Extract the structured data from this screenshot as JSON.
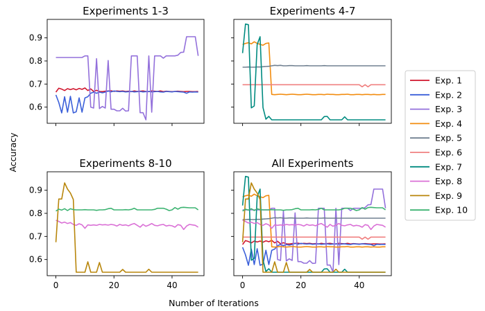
{
  "figure": {
    "ylabel": "Accuracy",
    "xlabel": "Number of Iterations"
  },
  "legend": {
    "placement": "right",
    "entries": [
      {
        "label": "Exp. 1",
        "color": "#d0142c"
      },
      {
        "label": "Exp. 2",
        "color": "#3a5fd9"
      },
      {
        "label": "Exp. 3",
        "color": "#9370db"
      },
      {
        "label": "Exp. 4",
        "color": "#f28c0f"
      },
      {
        "label": "Exp. 5",
        "color": "#708090"
      },
      {
        "label": "Exp. 6",
        "color": "#f08080"
      },
      {
        "label": "Exp. 7",
        "color": "#008b80"
      },
      {
        "label": "Exp. 8",
        "color": "#da70d6"
      },
      {
        "label": "Exp. 9",
        "color": "#b8860b"
      },
      {
        "label": "Exp. 10",
        "color": "#3cb371"
      }
    ]
  },
  "chart_data": [
    {
      "type": "line",
      "title": "Experiments 1-3",
      "xlim": [
        -3,
        51
      ],
      "ylim": [
        0.53,
        0.98
      ],
      "xticks": [
        0,
        20,
        40
      ],
      "yticks": [
        0.6,
        0.7,
        0.8,
        0.9
      ],
      "xtick_labels_visible": false,
      "ytick_labels_visible": true,
      "series": [
        {
          "name": "Exp. 1",
          "color": "#d0142c",
          "x_start": 0,
          "values": [
            0.665,
            0.682,
            0.678,
            0.672,
            0.68,
            0.676,
            0.68,
            0.675,
            0.681,
            0.677,
            0.683,
            0.672,
            0.679,
            0.668,
            0.673,
            0.668,
            0.667,
            0.669,
            0.67,
            0.671,
            0.668,
            0.67,
            0.669,
            0.67,
            0.668,
            0.669,
            0.667,
            0.67,
            0.668,
            0.669,
            0.67,
            0.668,
            0.667,
            0.67,
            0.669,
            0.668,
            0.67,
            0.667,
            0.669,
            0.668,
            0.667,
            0.668,
            0.669,
            0.668,
            0.667,
            0.668,
            0.668,
            0.667,
            0.667,
            0.668
          ]
        },
        {
          "name": "Exp. 2",
          "color": "#3a5fd9",
          "x_start": 0,
          "values": [
            0.653,
            0.62,
            0.575,
            0.645,
            0.578,
            0.647,
            0.575,
            0.58,
            0.64,
            0.578,
            0.64,
            0.645,
            0.66,
            0.665,
            0.66,
            0.665,
            0.662,
            0.665,
            0.67,
            0.666,
            0.67,
            0.668,
            0.667,
            0.668,
            0.666,
            0.667,
            0.668,
            0.666,
            0.667,
            0.668,
            0.666,
            0.667,
            0.668,
            0.666,
            0.667,
            0.668,
            0.666,
            0.665,
            0.668,
            0.667,
            0.666,
            0.668,
            0.667,
            0.666,
            0.665,
            0.66,
            0.666,
            0.665,
            0.666,
            0.665
          ]
        },
        {
          "name": "Exp. 3",
          "color": "#9370db",
          "x_start": 0,
          "values": [
            0.815,
            0.815,
            0.815,
            0.815,
            0.815,
            0.815,
            0.815,
            0.815,
            0.815,
            0.815,
            0.822,
            0.822,
            0.6,
            0.596,
            0.81,
            0.594,
            0.603,
            0.596,
            0.802,
            0.591,
            0.591,
            0.584,
            0.584,
            0.595,
            0.583,
            0.584,
            0.822,
            0.822,
            0.822,
            0.576,
            0.576,
            0.545,
            0.822,
            0.578,
            0.822,
            0.822,
            0.822,
            0.812,
            0.822,
            0.822,
            0.822,
            0.822,
            0.825,
            0.837,
            0.838,
            0.905,
            0.905,
            0.905,
            0.905,
            0.822
          ]
        }
      ]
    },
    {
      "type": "line",
      "title": "Experiments 4-7",
      "xlim": [
        -3,
        51
      ],
      "ylim": [
        0.53,
        0.98
      ],
      "xticks": [
        0,
        20,
        40
      ],
      "yticks": [
        0.6,
        0.7,
        0.8,
        0.9
      ],
      "xtick_labels_visible": false,
      "ytick_labels_visible": false,
      "series": [
        {
          "name": "Exp. 4",
          "color": "#f28c0f",
          "x_start": 0,
          "values": [
            0.871,
            0.876,
            0.879,
            0.874,
            0.883,
            0.876,
            0.872,
            0.868,
            0.876,
            0.878,
            0.655,
            0.654,
            0.655,
            0.656,
            0.655,
            0.654,
            0.655,
            0.656,
            0.655,
            0.654,
            0.654,
            0.655,
            0.656,
            0.655,
            0.654,
            0.654,
            0.655,
            0.655,
            0.654,
            0.656,
            0.655,
            0.655,
            0.654,
            0.654,
            0.655,
            0.655,
            0.656,
            0.654,
            0.654,
            0.655,
            0.655,
            0.654,
            0.655,
            0.655,
            0.654,
            0.655,
            0.654,
            0.654,
            0.655,
            0.655
          ]
        },
        {
          "name": "Exp. 5",
          "color": "#708090",
          "x_start": 0,
          "values": [
            0.773,
            0.773,
            0.774,
            0.773,
            0.773,
            0.774,
            0.774,
            0.775,
            0.776,
            0.777,
            0.779,
            0.781,
            0.78,
            0.781,
            0.779,
            0.779,
            0.78,
            0.78,
            0.779,
            0.779,
            0.779,
            0.779,
            0.78,
            0.779,
            0.779,
            0.779,
            0.779,
            0.779,
            0.78,
            0.779,
            0.779,
            0.779,
            0.779,
            0.779,
            0.779,
            0.779,
            0.779,
            0.779,
            0.779,
            0.779,
            0.779,
            0.779,
            0.779,
            0.779,
            0.779,
            0.779,
            0.779,
            0.779,
            0.779,
            0.779
          ]
        },
        {
          "name": "Exp. 6",
          "color": "#f08080",
          "x_start": 0,
          "values": [
            0.697,
            0.697,
            0.697,
            0.697,
            0.697,
            0.697,
            0.697,
            0.697,
            0.697,
            0.697,
            0.697,
            0.697,
            0.697,
            0.697,
            0.697,
            0.697,
            0.697,
            0.697,
            0.697,
            0.697,
            0.697,
            0.697,
            0.697,
            0.697,
            0.697,
            0.697,
            0.697,
            0.697,
            0.697,
            0.697,
            0.697,
            0.697,
            0.697,
            0.697,
            0.697,
            0.697,
            0.697,
            0.697,
            0.697,
            0.697,
            0.697,
            0.688,
            0.697,
            0.688,
            0.697,
            0.697,
            0.697,
            0.697,
            0.697,
            0.697
          ]
        },
        {
          "name": "Exp. 7",
          "color": "#008b80",
          "x_start": 0,
          "values": [
            0.834,
            0.96,
            0.957,
            0.597,
            0.605,
            0.871,
            0.905,
            0.598,
            0.548,
            0.56,
            0.545,
            0.545,
            0.545,
            0.545,
            0.545,
            0.545,
            0.545,
            0.545,
            0.545,
            0.545,
            0.545,
            0.545,
            0.545,
            0.545,
            0.545,
            0.545,
            0.545,
            0.545,
            0.559,
            0.56,
            0.545,
            0.545,
            0.545,
            0.545,
            0.545,
            0.558,
            0.545,
            0.545,
            0.545,
            0.545,
            0.545,
            0.545,
            0.545,
            0.545,
            0.545,
            0.545,
            0.545,
            0.545,
            0.545,
            0.545
          ]
        }
      ]
    },
    {
      "type": "line",
      "title": "Experiments 8-10",
      "xlim": [
        -3,
        51
      ],
      "ylim": [
        0.53,
        0.98
      ],
      "xticks": [
        0,
        20,
        40
      ],
      "yticks": [
        0.6,
        0.7,
        0.8,
        0.9
      ],
      "xtick_labels_visible": true,
      "ytick_labels_visible": true,
      "series": [
        {
          "name": "Exp. 8",
          "color": "#da70d6",
          "x_start": 0,
          "values": [
            0.77,
            0.765,
            0.758,
            0.762,
            0.756,
            0.76,
            0.752,
            0.748,
            0.755,
            0.75,
            0.735,
            0.75,
            0.748,
            0.75,
            0.748,
            0.752,
            0.75,
            0.751,
            0.749,
            0.752,
            0.75,
            0.745,
            0.752,
            0.748,
            0.75,
            0.746,
            0.752,
            0.756,
            0.748,
            0.74,
            0.752,
            0.744,
            0.749,
            0.756,
            0.748,
            0.746,
            0.75,
            0.752,
            0.745,
            0.748,
            0.746,
            0.74,
            0.751,
            0.748,
            0.73,
            0.745,
            0.752,
            0.75,
            0.748,
            0.74
          ]
        },
        {
          "name": "Exp. 9",
          "color": "#b8860b",
          "x_start": 0,
          "values": [
            0.675,
            0.862,
            0.862,
            0.932,
            0.905,
            0.888,
            0.86,
            0.545,
            0.545,
            0.545,
            0.545,
            0.59,
            0.545,
            0.545,
            0.545,
            0.587,
            0.545,
            0.545,
            0.545,
            0.545,
            0.545,
            0.545,
            0.545,
            0.557,
            0.545,
            0.545,
            0.545,
            0.545,
            0.545,
            0.545,
            0.545,
            0.545,
            0.558,
            0.545,
            0.545,
            0.545,
            0.545,
            0.545,
            0.545,
            0.545,
            0.545,
            0.545,
            0.545,
            0.545,
            0.545,
            0.545,
            0.545,
            0.545,
            0.545,
            0.545
          ]
        },
        {
          "name": "Exp. 10",
          "color": "#3cb371",
          "x_start": 0,
          "values": [
            0.81,
            0.818,
            0.814,
            0.82,
            0.812,
            0.82,
            0.816,
            0.815,
            0.815,
            0.815,
            0.816,
            0.815,
            0.815,
            0.815,
            0.813,
            0.815,
            0.815,
            0.816,
            0.82,
            0.822,
            0.815,
            0.815,
            0.815,
            0.815,
            0.816,
            0.815,
            0.817,
            0.822,
            0.815,
            0.815,
            0.815,
            0.815,
            0.815,
            0.815,
            0.817,
            0.822,
            0.822,
            0.822,
            0.818,
            0.812,
            0.815,
            0.825,
            0.818,
            0.825,
            0.826,
            0.825,
            0.824,
            0.824,
            0.824,
            0.815
          ]
        }
      ]
    },
    {
      "type": "line",
      "title": "All Experiments",
      "xlim": [
        -3,
        51
      ],
      "ylim": [
        0.53,
        0.98
      ],
      "xticks": [
        0,
        20,
        40
      ],
      "yticks": [
        0.6,
        0.7,
        0.8,
        0.9
      ],
      "xtick_labels_visible": true,
      "ytick_labels_visible": false,
      "series_from_panels": [
        0,
        1,
        2
      ]
    }
  ]
}
